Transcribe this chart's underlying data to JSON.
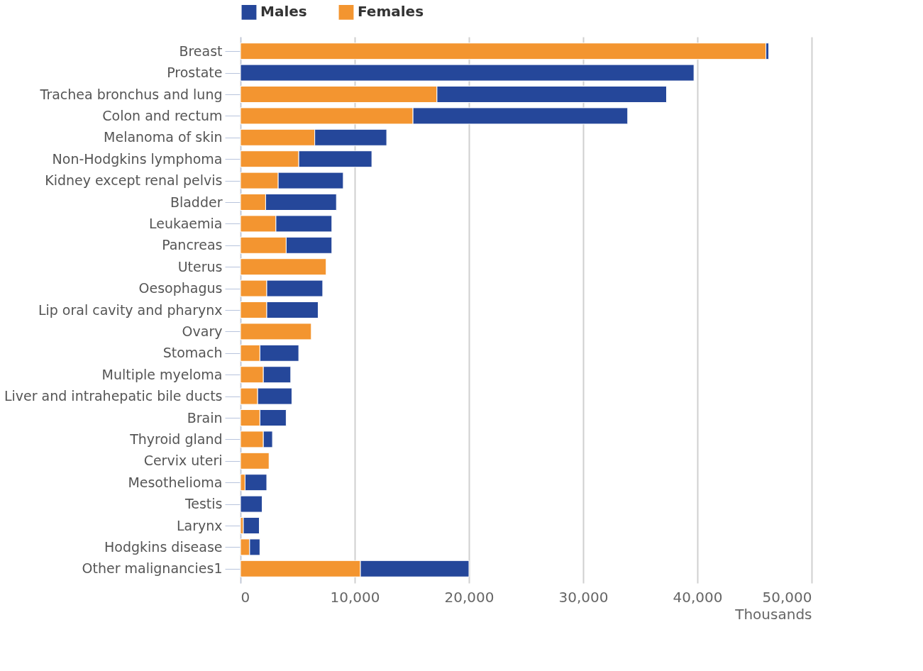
{
  "chart_data": {
    "type": "bar",
    "orientation": "horizontal",
    "stacked": true,
    "categories": [
      "Breast",
      "Prostate",
      "Trachea bronchus and lung",
      "Colon and rectum",
      "Melanoma of skin",
      "Non-Hodgkins lymphoma",
      "Kidney except renal pelvis",
      "Bladder",
      "Leukaemia",
      "Pancreas",
      "Uterus",
      "Oesophagus",
      "Lip oral cavity and pharynx",
      "Ovary",
      "Stomach",
      "Multiple myeloma",
      "Liver and intrahepatic bile ducts",
      "Brain",
      "Thyroid gland",
      "Cervix uteri",
      "Mesothelioma",
      "Testis",
      "Larynx",
      "Hodgkins disease",
      "Other malignancies1"
    ],
    "series": [
      {
        "name": "Females",
        "color": "#f39530",
        "values": [
          46000,
          null,
          17200,
          15100,
          6500,
          5100,
          3300,
          2200,
          3100,
          4000,
          7500,
          2300,
          2300,
          6200,
          1700,
          2000,
          1500,
          1700,
          2000,
          2500,
          400,
          null,
          250,
          800,
          10500
        ]
      },
      {
        "name": "Males",
        "color": "#25479a",
        "values": [
          250,
          39700,
          20100,
          18800,
          6300,
          6400,
          5700,
          6200,
          4900,
          4000,
          null,
          4900,
          4500,
          null,
          3400,
          2400,
          3000,
          2300,
          800,
          null,
          1900,
          1900,
          1400,
          900,
          9500
        ]
      }
    ],
    "xlabel": "Thousands",
    "xlim": [
      0,
      50000
    ],
    "xticks": [
      0,
      {
        "value": 10000,
        "label": "10,000"
      },
      {
        "value": 20000,
        "label": "20,000"
      },
      {
        "value": 30000,
        "label": "30,000"
      },
      {
        "value": 40000,
        "label": "40,000"
      },
      {
        "value": 50000,
        "label": "50,000"
      }
    ],
    "grid": "x",
    "legend": "top"
  }
}
